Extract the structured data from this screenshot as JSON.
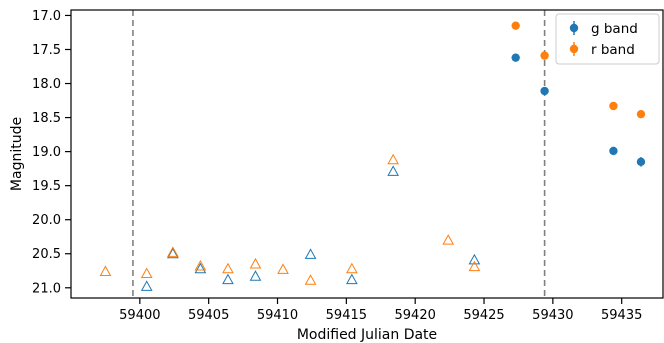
{
  "chart_data": {
    "type": "scatter",
    "xlabel": "Modified Julian Date",
    "ylabel": "Magnitude",
    "xlim": [
      59395.0,
      59438.0
    ],
    "ylim": [
      21.15,
      16.92
    ],
    "y_inverted": true,
    "x_ticks": [
      59400,
      59405,
      59410,
      59415,
      59420,
      59425,
      59430,
      59435
    ],
    "y_ticks": [
      17.0,
      17.5,
      18.0,
      18.5,
      19.0,
      19.5,
      20.0,
      20.5,
      21.0
    ],
    "y_tick_labels": [
      "17.0",
      "17.5",
      "18.0",
      "18.5",
      "19.0",
      "19.5",
      "20.0",
      "20.5",
      "21.0"
    ],
    "vertical_lines": [
      59399.5,
      59429.4
    ],
    "legend_position": "top-right",
    "series": [
      {
        "name": "g band",
        "color": "#1f77b4",
        "detections": [
          {
            "x": 59427.3,
            "y": 17.62,
            "err": 0.03
          },
          {
            "x": 59429.4,
            "y": 18.11,
            "err": 0.03
          },
          {
            "x": 59434.4,
            "y": 18.99,
            "err": 0.06
          },
          {
            "x": 59436.4,
            "y": 19.15,
            "err": 0.07
          }
        ],
        "upper_limits": [
          {
            "x": 59400.5,
            "y": 20.98
          },
          {
            "x": 59402.4,
            "y": 20.5
          },
          {
            "x": 59404.4,
            "y": 20.72
          },
          {
            "x": 59406.4,
            "y": 20.88
          },
          {
            "x": 59408.4,
            "y": 20.83
          },
          {
            "x": 59412.4,
            "y": 20.51
          },
          {
            "x": 59415.4,
            "y": 20.88
          },
          {
            "x": 59418.4,
            "y": 19.29
          },
          {
            "x": 59424.3,
            "y": 20.59
          }
        ]
      },
      {
        "name": "r band",
        "color": "#ff7f0e",
        "detections": [
          {
            "x": 59427.3,
            "y": 17.15,
            "err": 0.02
          },
          {
            "x": 59429.4,
            "y": 17.59,
            "err": 0.03
          },
          {
            "x": 59434.4,
            "y": 18.33,
            "err": 0.03
          },
          {
            "x": 59436.4,
            "y": 18.45,
            "err": 0.03
          }
        ],
        "upper_limits": [
          {
            "x": 59397.5,
            "y": 20.76
          },
          {
            "x": 59400.5,
            "y": 20.79
          },
          {
            "x": 59402.4,
            "y": 20.48
          },
          {
            "x": 59404.4,
            "y": 20.68
          },
          {
            "x": 59406.4,
            "y": 20.72
          },
          {
            "x": 59408.4,
            "y": 20.65
          },
          {
            "x": 59410.4,
            "y": 20.73
          },
          {
            "x": 59412.4,
            "y": 20.89
          },
          {
            "x": 59415.4,
            "y": 20.72
          },
          {
            "x": 59418.4,
            "y": 19.12
          },
          {
            "x": 59422.4,
            "y": 20.3
          },
          {
            "x": 59424.3,
            "y": 20.69
          }
        ]
      }
    ]
  }
}
